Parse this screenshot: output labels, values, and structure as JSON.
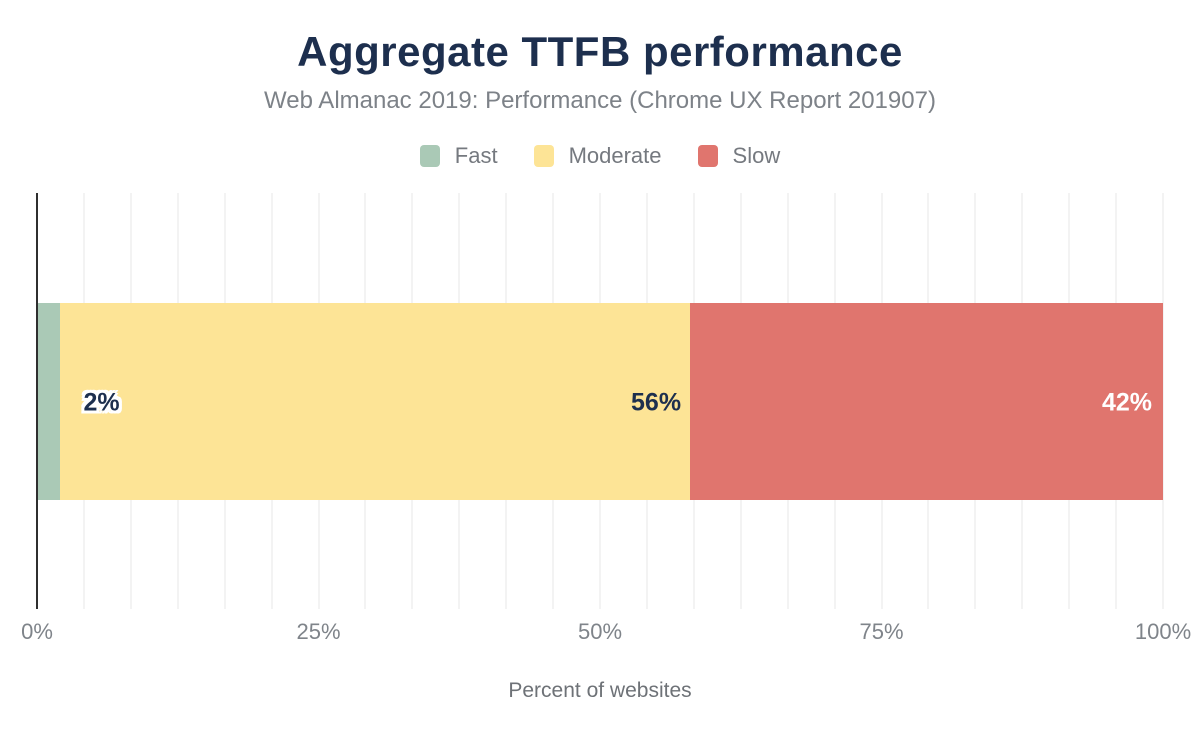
{
  "legend": [
    {
      "label": "Fast",
      "color": "#aac9b6"
    },
    {
      "label": "Moderate",
      "color": "#fde496"
    },
    {
      "label": "Slow",
      "color": "#e0756e"
    }
  ],
  "chart_data": {
    "type": "bar",
    "orientation": "horizontal",
    "stacked": true,
    "title": "Aggregate TTFB performance",
    "subtitle": "Web Almanac 2019: Performance (Chrome UX Report 201907)",
    "xlabel": "Percent of websites",
    "xlim": [
      0,
      100
    ],
    "x_ticks": [
      "0%",
      "25%",
      "50%",
      "75%",
      "100%"
    ],
    "x_tick_values": [
      0,
      25,
      50,
      75,
      100
    ],
    "grid": "vertical",
    "grid_divisions": 24,
    "legend_position": "top",
    "series": [
      {
        "name": "Fast",
        "value": 2,
        "color": "#aac9b6",
        "label": "2%",
        "label_color": "#1d2f4e"
      },
      {
        "name": "Moderate",
        "value": 56,
        "color": "#fde496",
        "label": "56%",
        "label_color": "#1d2f4e"
      },
      {
        "name": "Slow",
        "value": 42,
        "color": "#e0756e",
        "label": "42%",
        "label_color": "#ffffff"
      }
    ]
  }
}
